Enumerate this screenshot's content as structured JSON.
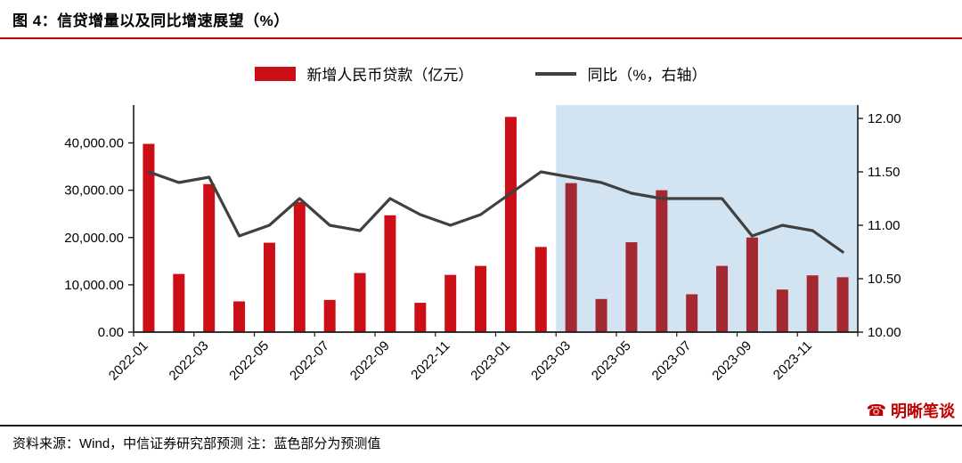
{
  "header": {
    "title": "图 4：信贷增量以及同比增速展望（%）"
  },
  "legend": {
    "bar_label": "新增人民币贷款（亿元）",
    "line_label": "同比（%，右轴）"
  },
  "chart_data": {
    "type": "bar",
    "categories": [
      "2022-01",
      "2022-02",
      "2022-03",
      "2022-04",
      "2022-05",
      "2022-06",
      "2022-07",
      "2022-08",
      "2022-09",
      "2022-10",
      "2022-11",
      "2022-12",
      "2023-01",
      "2023-02",
      "2023-03",
      "2023-04",
      "2023-05",
      "2023-06",
      "2023-07",
      "2023-08",
      "2023-09",
      "2023-10",
      "2023-11",
      "2023-12"
    ],
    "series": [
      {
        "name": "新增人民币贷款（亿元）",
        "type": "bar",
        "axis": "left",
        "values": [
          39800,
          12300,
          31300,
          6500,
          18900,
          27500,
          6800,
          12500,
          24700,
          6200,
          12100,
          14000,
          45500,
          18000,
          31500,
          7000,
          19000,
          30000,
          8000,
          14000,
          20000,
          9000,
          12000,
          11600
        ]
      },
      {
        "name": "同比（%，右轴）",
        "type": "line",
        "axis": "right",
        "values": [
          11.5,
          11.4,
          11.45,
          10.9,
          11.0,
          11.25,
          11.0,
          10.95,
          11.25,
          11.1,
          11.0,
          11.1,
          11.3,
          11.5,
          11.45,
          11.4,
          11.3,
          11.25,
          11.25,
          11.25,
          10.9,
          11.0,
          10.95,
          10.75
        ]
      }
    ],
    "left_axis": {
      "min": 0,
      "max": 48000,
      "tick_values": [
        0,
        10000,
        20000,
        30000,
        40000
      ],
      "tick_labels": [
        "0.00",
        "10,000.00",
        "20,000.00",
        "30,000.00",
        "40,000.00"
      ]
    },
    "right_axis": {
      "min": 10,
      "max": 12.125,
      "tick_values": [
        10,
        10.5,
        11,
        11.5,
        12
      ],
      "tick_labels": [
        "10.00",
        "10.50",
        "11.00",
        "11.50",
        "12.00"
      ]
    },
    "x_tick_labels": [
      "2022-01",
      "2022-03",
      "2022-05",
      "2022-07",
      "2022-09",
      "2022-11",
      "2023-01",
      "2023-03",
      "2023-05",
      "2023-07",
      "2023-09",
      "2023-11"
    ],
    "forecast_start_index": 14,
    "legend_position": "top",
    "grid": false,
    "colors": {
      "bar": "#cc0f16",
      "forecast_bar": "#a42832",
      "line": "#404040",
      "forecast_region": "#d2e3f1",
      "axis": "#1a1a1a",
      "title_rule": "#c00000",
      "watermark": "#c00000"
    }
  },
  "footer": {
    "source": "资料来源：Wind，中信证券研究部预测 注：蓝色部分为预测值"
  },
  "watermark": {
    "text": "明晰笔谈",
    "icon": "☎"
  }
}
